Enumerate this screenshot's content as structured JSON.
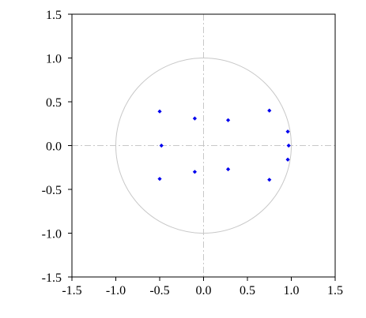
{
  "chart_data": {
    "type": "scatter",
    "title": "",
    "xlabel": "",
    "ylabel": "",
    "xlim": [
      -1.5,
      1.5
    ],
    "ylim": [
      -1.5,
      1.5
    ],
    "grid": false,
    "x_ticks": [
      -1.5,
      -1.0,
      -0.5,
      0.0,
      0.5,
      1.0,
      1.5
    ],
    "y_ticks": [
      -1.5,
      -1.0,
      -0.5,
      0.0,
      0.5,
      1.0,
      1.5
    ],
    "x_tick_labels": [
      "-1.5",
      "-1.0",
      "-0.5",
      "0.0",
      "0.5",
      "1.0",
      "1.5"
    ],
    "y_tick_labels": [
      "-1.5",
      "-1.0",
      "-0.5",
      "0.0",
      "0.5",
      "1.0",
      "1.5"
    ],
    "reference_circle": {
      "center": [
        0,
        0
      ],
      "radius": 1.0
    },
    "reference_lines": {
      "x": 0,
      "y": 0
    },
    "colors": {
      "points": "#0000ee",
      "circle": "#c8c8c8",
      "reference_lines": "#c8c8c8",
      "frame": "#000000"
    },
    "series": [
      {
        "points": [
          {
            "x": -0.5,
            "y": 0.39
          },
          {
            "x": -0.1,
            "y": 0.31
          },
          {
            "x": 0.28,
            "y": 0.29
          },
          {
            "x": 0.75,
            "y": 0.4
          },
          {
            "x": 0.96,
            "y": 0.16
          },
          {
            "x": 0.97,
            "y": 0.0
          },
          {
            "x": 0.96,
            "y": -0.16
          },
          {
            "x": -0.48,
            "y": 0.0
          },
          {
            "x": -0.5,
            "y": -0.38
          },
          {
            "x": -0.1,
            "y": -0.3
          },
          {
            "x": 0.28,
            "y": -0.27
          },
          {
            "x": 0.75,
            "y": -0.39
          }
        ]
      }
    ]
  }
}
